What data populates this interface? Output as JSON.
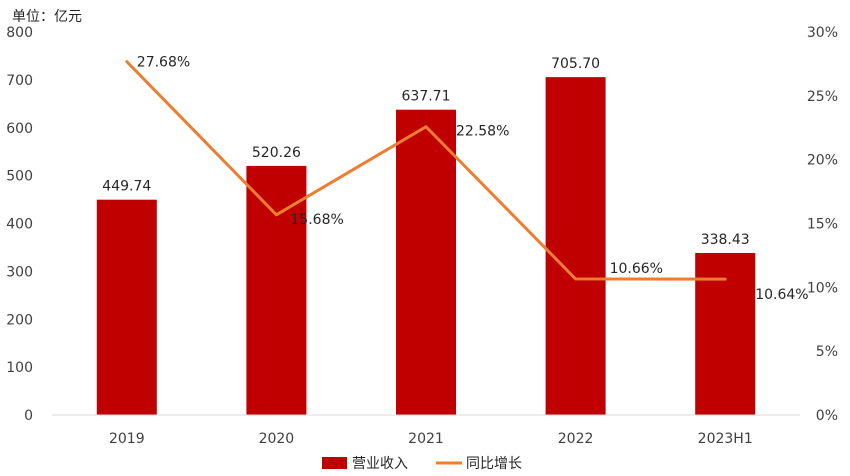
{
  "chart_data": {
    "type": "bar",
    "unit_label": "单位：亿元",
    "categories": [
      "2019",
      "2020",
      "2021",
      "2022",
      "2023H1"
    ],
    "series": [
      {
        "name": "营业收入",
        "type": "bar",
        "axis": "left",
        "color": "#c00000",
        "values": [
          449.74,
          520.26,
          637.71,
          705.7,
          338.43
        ],
        "labels": [
          "449.74",
          "520.26",
          "637.71",
          "705.70",
          "338.43"
        ]
      },
      {
        "name": "同比增长",
        "type": "line",
        "axis": "right",
        "color": "#ed7d31",
        "values": [
          27.68,
          15.68,
          22.58,
          10.66,
          10.64
        ],
        "labels": [
          "27.68%",
          "15.68%",
          "22.58%",
          "10.66%",
          "10.64%"
        ]
      }
    ],
    "y_left": {
      "min": 0,
      "max": 800,
      "ticks": [
        "0",
        "100",
        "200",
        "300",
        "400",
        "500",
        "600",
        "700",
        "800"
      ]
    },
    "y_right": {
      "min": 0,
      "max": 30,
      "ticks": [
        "0%",
        "5%",
        "10%",
        "15%",
        "20%",
        "25%",
        "30%"
      ]
    },
    "grid": false,
    "legend_position": "bottom"
  }
}
